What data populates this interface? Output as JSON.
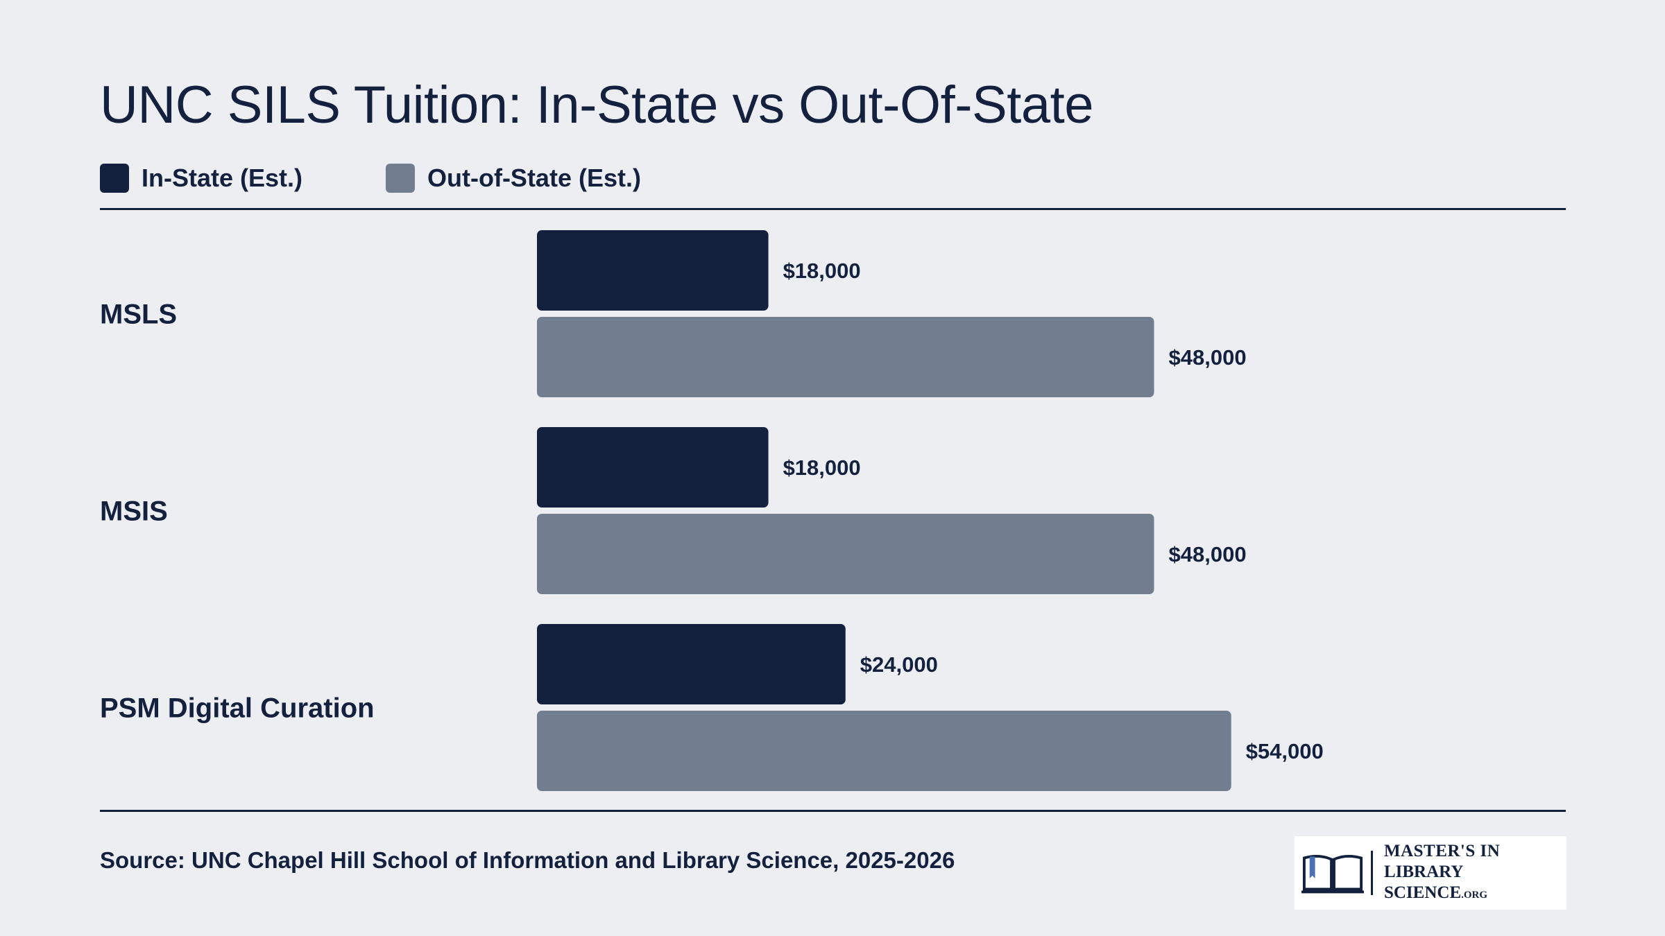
{
  "header": {
    "title": "UNC SILS Tuition: In-State vs Out-Of-State"
  },
  "legend": [
    {
      "label": "In-State (Est.)",
      "color": "#13213f"
    },
    {
      "label": "Out-of-State (Est.)",
      "color": "#737d90"
    }
  ],
  "chart_data": {
    "type": "bar",
    "orientation": "horizontal",
    "title": "UNC SILS Tuition: In-State vs Out-Of-State",
    "categories": [
      "MSLS",
      "MSIS",
      "PSM Digital Curation"
    ],
    "series": [
      {
        "name": "In-State (Est.)",
        "values": [
          18000,
          18000,
          24000
        ],
        "labels": [
          "$18,000",
          "$18,000",
          "$24,000"
        ],
        "color": "#13213f"
      },
      {
        "name": "Out-of-State (Est.)",
        "values": [
          48000,
          48000,
          54000
        ],
        "labels": [
          "$48,000",
          "$48,000",
          "$54,000"
        ],
        "color": "#737d90"
      }
    ],
    "xlim": [
      0,
      64000
    ],
    "grid": false,
    "legend_position": "top-left"
  },
  "footer": {
    "source": "Source: UNC Chapel Hill School of Information and Library Science, 2025-2026",
    "logo": {
      "line1": "MASTER'S IN",
      "line2": "LIBRARY SCIENCE",
      "suffix": ".ORG",
      "icon": "open-book-icon"
    }
  }
}
